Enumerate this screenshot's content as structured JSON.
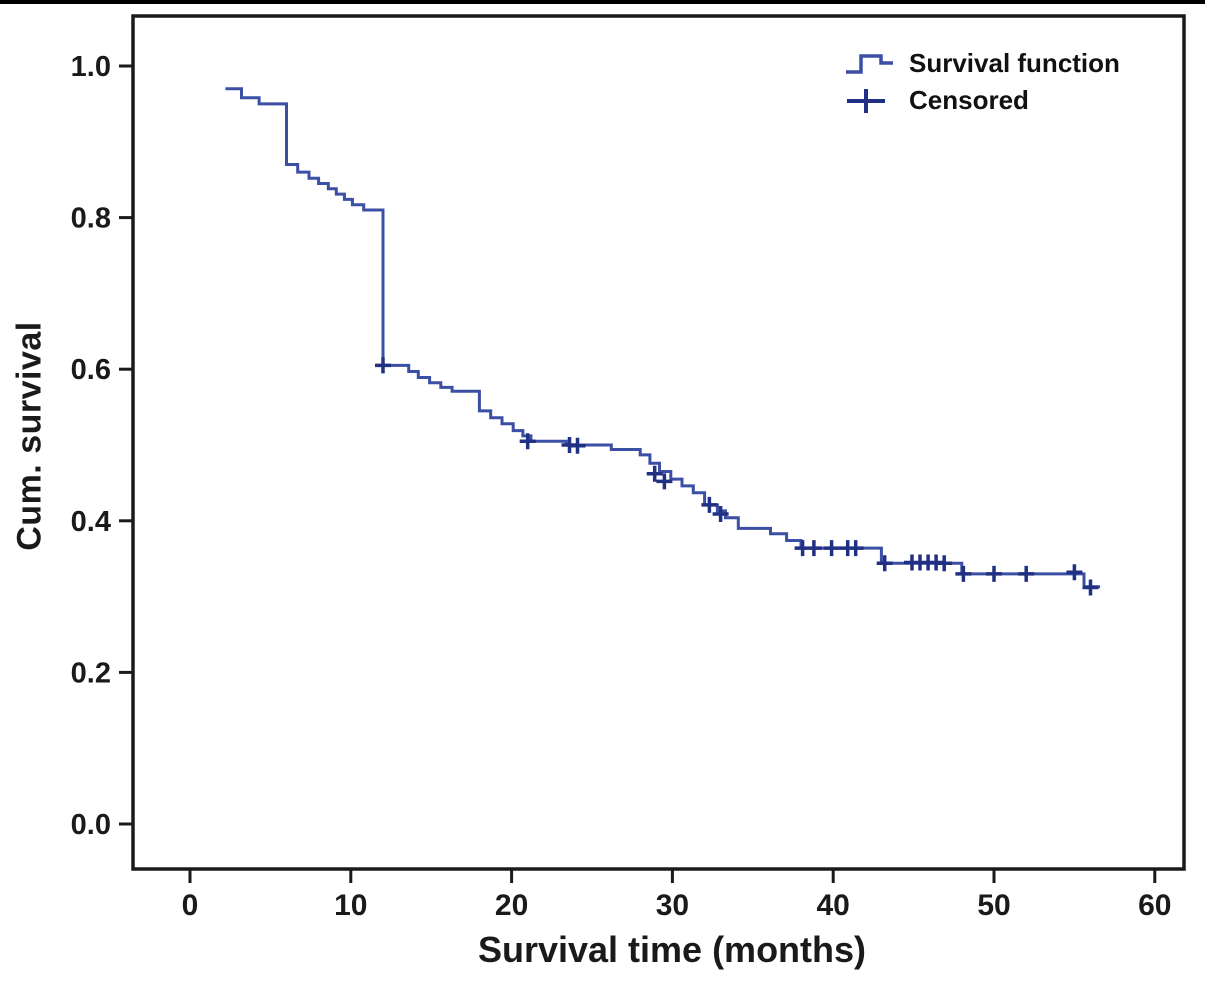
{
  "chart_data": {
    "type": "line",
    "subtype": "kaplan-meier-step",
    "title": "",
    "xlabel": "Survival time (months)",
    "ylabel": "Cum. survival",
    "xlim": [
      -3.5,
      62
    ],
    "ylim": [
      -0.06,
      1.05
    ],
    "x_ticks": [
      0,
      10,
      20,
      30,
      40,
      50,
      60
    ],
    "y_ticks": [
      "0.0",
      "0.2",
      "0.4",
      "0.6",
      "0.8",
      "1.0"
    ],
    "grid": false,
    "legend_position": "top-right-inside",
    "line_color": "#3b4fa4",
    "censor_color": "#203082",
    "axis_color": "#1a1a1a",
    "legend": [
      {
        "label": "Survival function",
        "marker": "step-line"
      },
      {
        "label": "Censored",
        "marker": "plus"
      }
    ],
    "curve_end_x": 56.6,
    "survival_steps": [
      [
        2.2,
        0.97
      ],
      [
        3.2,
        0.958
      ],
      [
        4.3,
        0.95
      ],
      [
        6.0,
        0.87
      ],
      [
        6.7,
        0.86
      ],
      [
        7.4,
        0.852
      ],
      [
        8.0,
        0.845
      ],
      [
        8.6,
        0.838
      ],
      [
        9.1,
        0.831
      ],
      [
        9.6,
        0.824
      ],
      [
        10.1,
        0.817
      ],
      [
        10.8,
        0.81
      ],
      [
        12.0,
        0.605
      ],
      [
        13.6,
        0.597
      ],
      [
        14.2,
        0.589
      ],
      [
        14.9,
        0.582
      ],
      [
        15.6,
        0.576
      ],
      [
        16.3,
        0.571
      ],
      [
        18.0,
        0.545
      ],
      [
        18.7,
        0.536
      ],
      [
        19.4,
        0.528
      ],
      [
        20.1,
        0.519
      ],
      [
        20.7,
        0.512
      ],
      [
        21.2,
        0.505
      ],
      [
        23.4,
        0.5
      ],
      [
        26.2,
        0.494
      ],
      [
        28.0,
        0.487
      ],
      [
        28.6,
        0.476
      ],
      [
        29.2,
        0.465
      ],
      [
        29.9,
        0.455
      ],
      [
        30.6,
        0.446
      ],
      [
        31.3,
        0.437
      ],
      [
        32.0,
        0.421
      ],
      [
        32.8,
        0.413
      ],
      [
        33.3,
        0.404
      ],
      [
        34.1,
        0.39
      ],
      [
        36.1,
        0.383
      ],
      [
        37.1,
        0.374
      ],
      [
        38.0,
        0.364
      ],
      [
        43.0,
        0.344
      ],
      [
        48.0,
        0.33
      ],
      [
        55.6,
        0.313
      ]
    ],
    "censored_points": [
      [
        12.0,
        0.605
      ],
      [
        21.0,
        0.505
      ],
      [
        23.6,
        0.5
      ],
      [
        24.1,
        0.499
      ],
      [
        28.9,
        0.462
      ],
      [
        29.5,
        0.452
      ],
      [
        32.3,
        0.421
      ],
      [
        33.0,
        0.409
      ],
      [
        38.1,
        0.364
      ],
      [
        38.8,
        0.364
      ],
      [
        39.9,
        0.364
      ],
      [
        40.9,
        0.364
      ],
      [
        41.4,
        0.364
      ],
      [
        43.2,
        0.344
      ],
      [
        44.9,
        0.345
      ],
      [
        45.4,
        0.345
      ],
      [
        45.9,
        0.345
      ],
      [
        46.4,
        0.345
      ],
      [
        46.9,
        0.344
      ],
      [
        48.1,
        0.33
      ],
      [
        50.0,
        0.33
      ],
      [
        52.0,
        0.33
      ],
      [
        55.0,
        0.332
      ],
      [
        56.0,
        0.312
      ]
    ]
  }
}
